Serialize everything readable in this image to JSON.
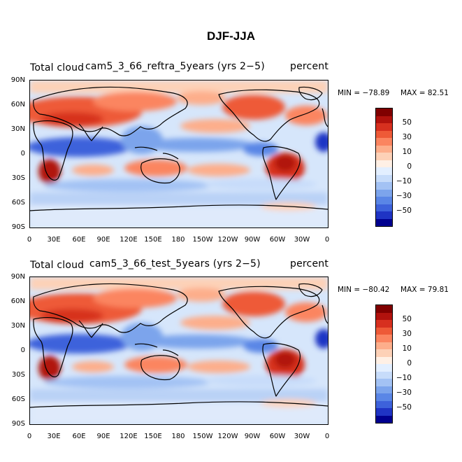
{
  "figure": {
    "title": "DJF-JJA"
  },
  "colors": [
    "#800000",
    "#b1120d",
    "#d7301f",
    "#ee5a37",
    "#fb8560",
    "#fdae8b",
    "#fdd1b7",
    "#fff0e5",
    "#e3efff",
    "#c7dcfa",
    "#a3c2f4",
    "#7ca4ec",
    "#5a86e6",
    "#3d62db",
    "#1f34c4",
    "#00008f"
  ],
  "panels": [
    {
      "field": "Total cloud",
      "case": "cam5_3_66_reftra_5years (yrs 2−5)",
      "units": "percent",
      "min_label": "MIN = −78.89",
      "max_label": "MAX =  82.51"
    },
    {
      "field": "Total cloud",
      "case": "cam5_3_66_test_5years (yrs 2−5)",
      "units": "percent",
      "min_label": "MIN = −80.42",
      "max_label": "MAX =  79.81"
    }
  ],
  "lat_ticks": [
    "90N",
    "60N",
    "30N",
    "0",
    "30S",
    "60S",
    "90S"
  ],
  "lon_ticks": [
    "0",
    "30E",
    "60E",
    "90E",
    "120E",
    "150E",
    "180",
    "150W",
    "120W",
    "90W",
    "60W",
    "30W",
    "0"
  ],
  "colorbar_labels": [
    "50",
    "30",
    "10",
    "0",
    "−10",
    "−30",
    "−50"
  ]
}
